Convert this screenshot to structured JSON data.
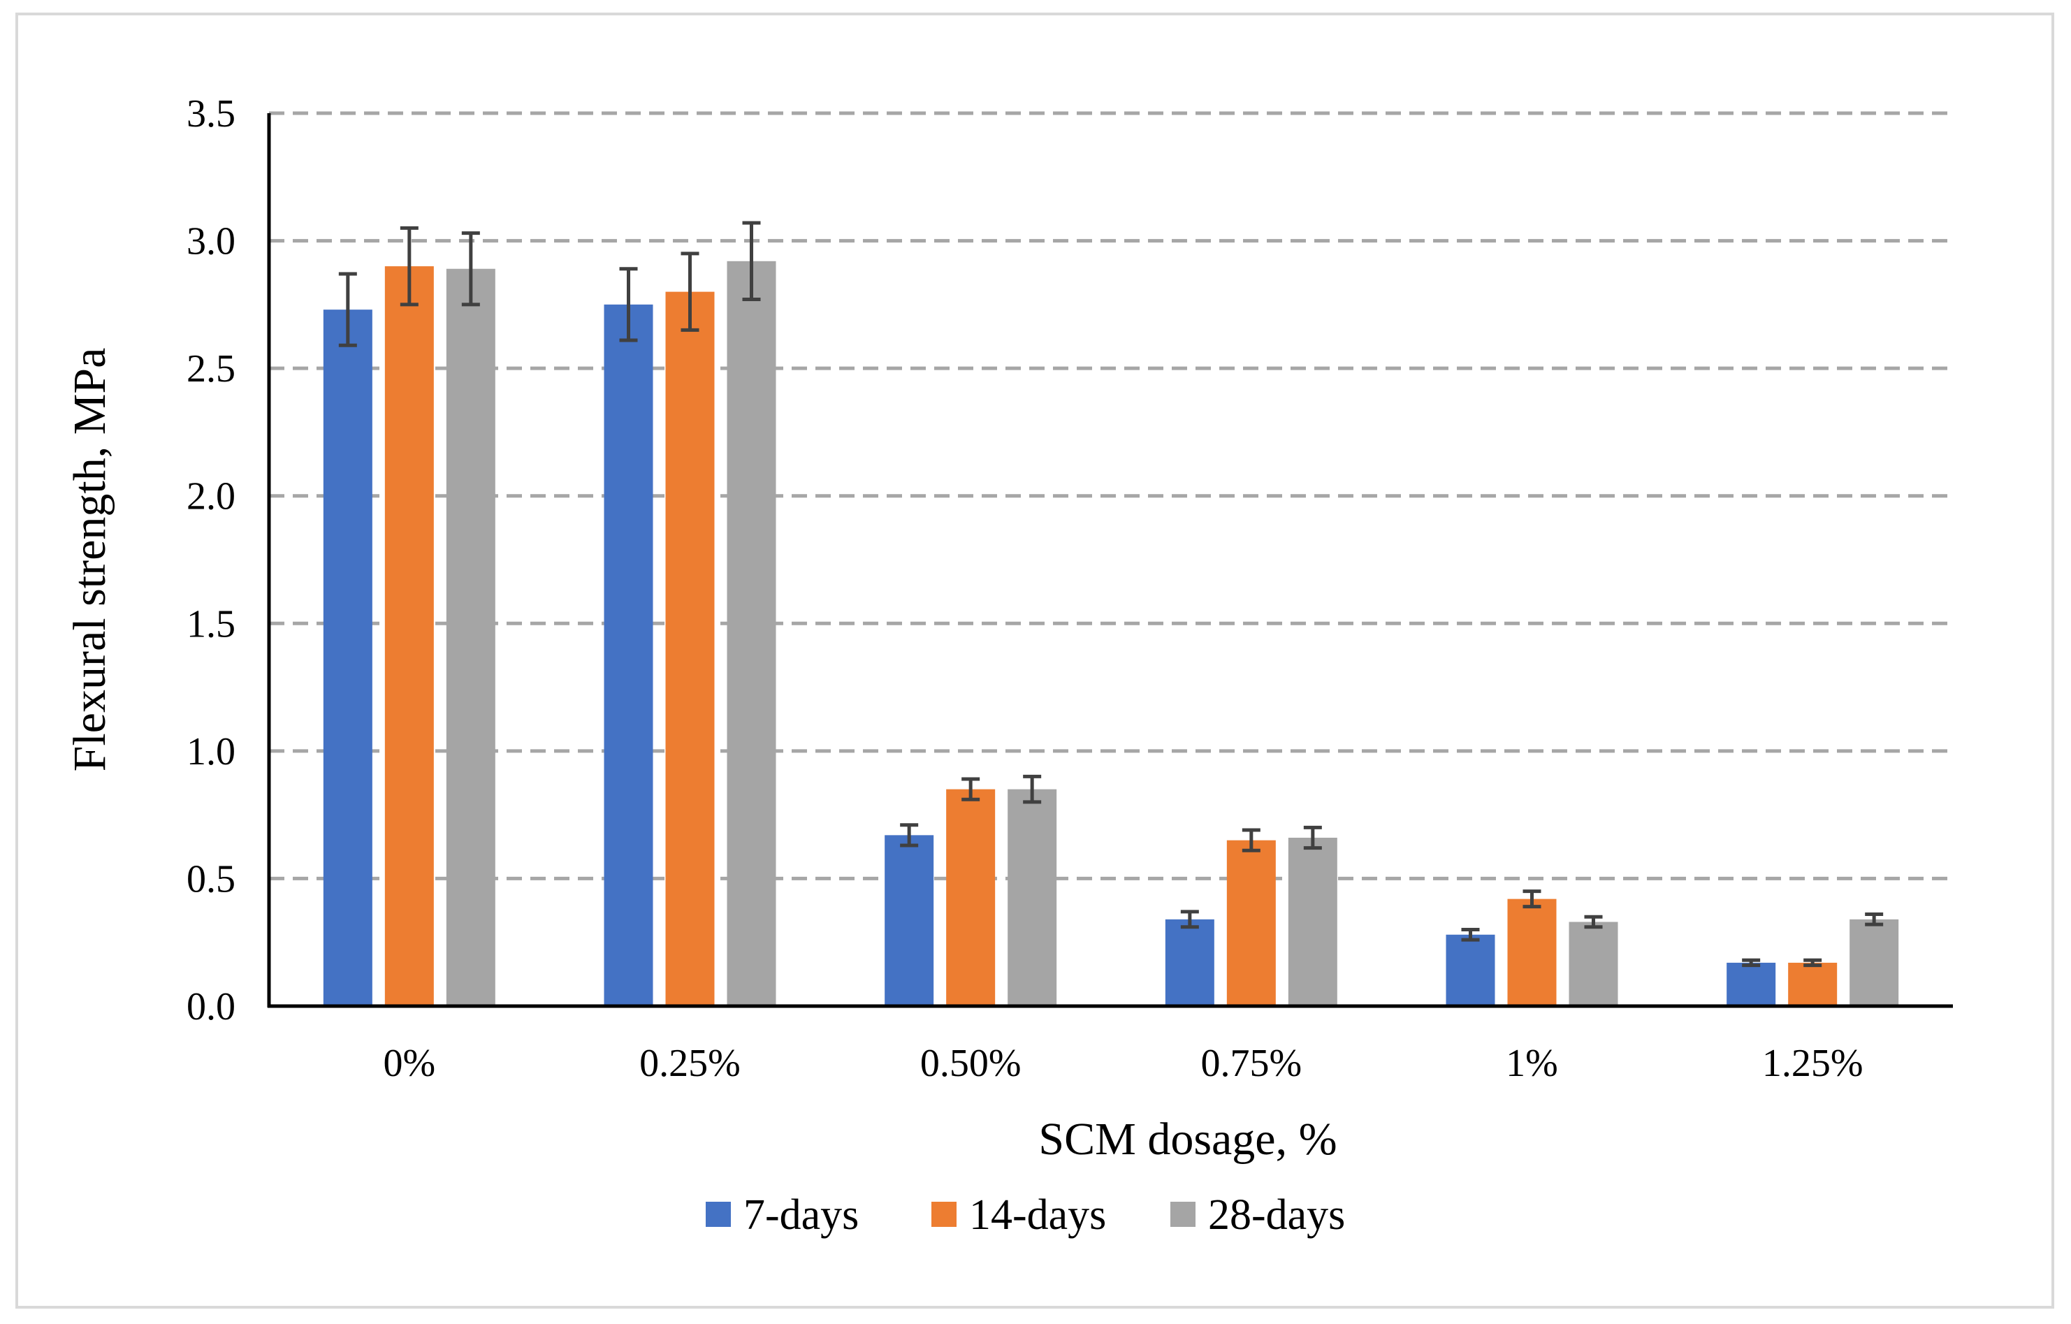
{
  "chart_data": {
    "type": "bar",
    "title": "",
    "xlabel": "SCM dosage, %",
    "ylabel": "Flexural strength, MPa",
    "ylim": [
      0,
      3.5
    ],
    "yticks": [
      "0.0",
      "0.5",
      "1.0",
      "1.5",
      "2.0",
      "2.5",
      "3.0",
      "3.5"
    ],
    "categories": [
      "0%",
      "0.25%",
      "0.50%",
      "0.75%",
      "1%",
      "1.25%"
    ],
    "grid": true,
    "legend_position": "bottom",
    "series": [
      {
        "name": "7-days",
        "color": "#4472c4",
        "values": [
          2.73,
          2.75,
          0.67,
          0.34,
          0.28,
          0.17
        ],
        "errors": [
          0.14,
          0.14,
          0.04,
          0.03,
          0.02,
          0.01
        ]
      },
      {
        "name": "14-days",
        "color": "#ed7d31",
        "values": [
          2.9,
          2.8,
          0.85,
          0.65,
          0.42,
          0.17
        ],
        "errors": [
          0.15,
          0.15,
          0.04,
          0.04,
          0.03,
          0.01
        ]
      },
      {
        "name": "28-days",
        "color": "#a5a5a5",
        "values": [
          2.89,
          2.92,
          0.85,
          0.66,
          0.33,
          0.34
        ],
        "errors": [
          0.14,
          0.15,
          0.05,
          0.04,
          0.02,
          0.02
        ]
      }
    ]
  }
}
